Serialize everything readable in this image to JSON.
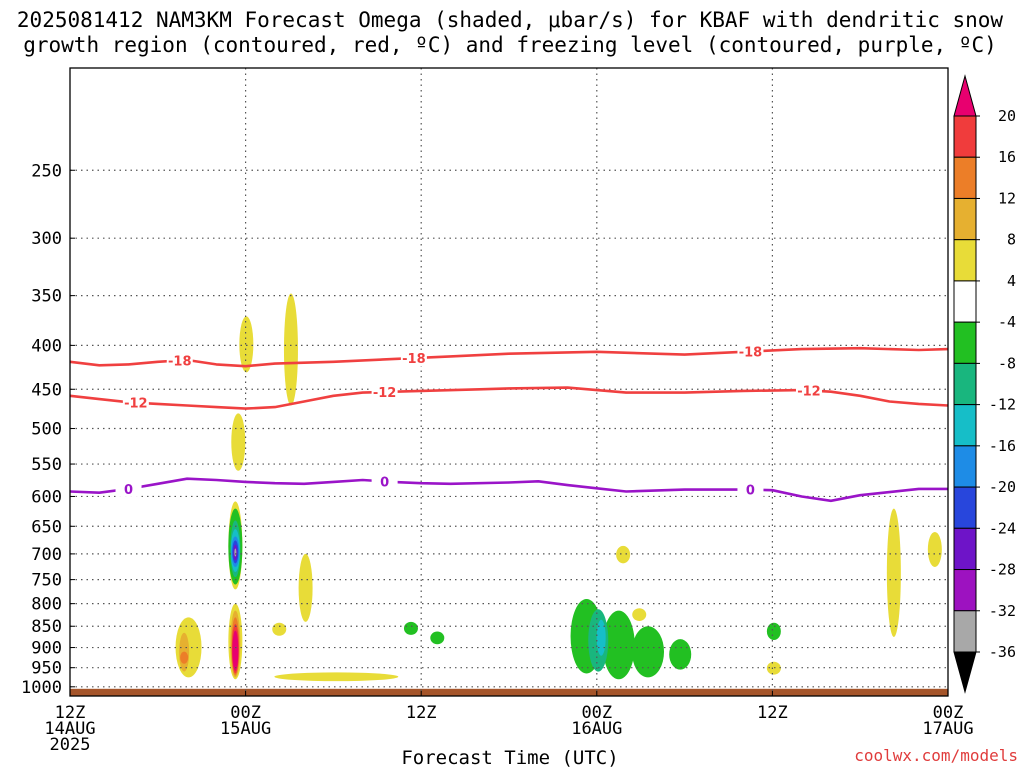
{
  "chart_data": {
    "type": "heatmap",
    "title_line1": "2025081412 NAM3KM Forecast Omega (shaded, μbar/s) for KBAF with dendritic snow",
    "title_line2": "growth region (contoured, red, ºC) and freezing level (contoured, purple, ºC)",
    "xlabel": "Forecast Time (UTC)",
    "credit": "coolwx.com/models",
    "x_hours_range": [
      0,
      60
    ],
    "x_ticks": [
      {
        "h": 0,
        "lines": [
          "12Z",
          "14AUG",
          "2025"
        ]
      },
      {
        "h": 12,
        "lines": [
          "00Z",
          "15AUG"
        ]
      },
      {
        "h": 24,
        "lines": [
          "12Z"
        ]
      },
      {
        "h": 36,
        "lines": [
          "00Z",
          "16AUG"
        ]
      },
      {
        "h": 48,
        "lines": [
          "12Z"
        ]
      },
      {
        "h": 60,
        "lines": [
          "00Z",
          "17AUG"
        ]
      }
    ],
    "y_axis": {
      "scale": "log",
      "range": [
        1025,
        190
      ],
      "reversed": true
    },
    "y_ticks": [
      250,
      300,
      350,
      400,
      450,
      500,
      550,
      600,
      650,
      700,
      750,
      800,
      850,
      900,
      950,
      1000
    ],
    "grid": true,
    "ground_level": 1000,
    "colorbar": {
      "labels": [
        "20",
        "16",
        "12",
        "8",
        "4",
        "-4",
        "-8",
        "-12",
        "-16",
        "-20",
        "-24",
        "-28",
        "-32",
        "-36"
      ],
      "colors": [
        "#e8006f",
        "#f03c3c",
        "#ec7e28",
        "#e6b030",
        "#e8dc38",
        "#ffffff",
        "#22c022",
        "#19b67e",
        "#16bec8",
        "#1e8ce6",
        "#2846dc",
        "#6e14c8",
        "#9d12c0",
        "#a8a8a8",
        "#000000"
      ]
    },
    "contours": [
      {
        "name": "-18",
        "color": "#f04040",
        "points": [
          [
            0,
            418
          ],
          [
            2,
            422
          ],
          [
            4,
            421
          ],
          [
            6,
            418
          ],
          [
            8,
            416
          ],
          [
            10,
            421
          ],
          [
            12,
            423
          ],
          [
            14,
            420
          ],
          [
            18,
            418
          ],
          [
            22,
            415
          ],
          [
            26,
            412
          ],
          [
            30,
            409
          ],
          [
            36,
            407
          ],
          [
            40,
            409
          ],
          [
            42,
            410
          ],
          [
            46,
            407
          ],
          [
            50,
            404
          ],
          [
            54,
            403
          ],
          [
            58,
            405
          ],
          [
            60,
            404
          ]
        ],
        "labels_at": [
          7.5,
          23.5,
          46.5
        ]
      },
      {
        "name": "-12",
        "color": "#f04040",
        "points": [
          [
            0,
            458
          ],
          [
            2,
            462
          ],
          [
            4,
            466
          ],
          [
            6,
            468
          ],
          [
            8,
            470
          ],
          [
            10,
            472
          ],
          [
            12,
            474
          ],
          [
            14,
            472
          ],
          [
            16,
            465
          ],
          [
            18,
            458
          ],
          [
            20,
            454
          ],
          [
            24,
            452
          ],
          [
            28,
            450
          ],
          [
            30,
            449
          ],
          [
            34,
            448
          ],
          [
            36,
            451
          ],
          [
            38,
            454
          ],
          [
            42,
            454
          ],
          [
            46,
            452
          ],
          [
            50,
            451
          ],
          [
            52,
            453
          ],
          [
            54,
            458
          ],
          [
            56,
            465
          ],
          [
            58,
            468
          ],
          [
            60,
            470
          ]
        ],
        "labels_at": [
          4.5,
          21.5,
          50.5
        ]
      },
      {
        "name": "0",
        "color": "#9a14c8",
        "points": [
          [
            0,
            592
          ],
          [
            2,
            594
          ],
          [
            4,
            588
          ],
          [
            6,
            580
          ],
          [
            8,
            572
          ],
          [
            10,
            574
          ],
          [
            12,
            577
          ],
          [
            14,
            579
          ],
          [
            16,
            580
          ],
          [
            18,
            577
          ],
          [
            20,
            574
          ],
          [
            22,
            577
          ],
          [
            24,
            579
          ],
          [
            26,
            580
          ],
          [
            30,
            578
          ],
          [
            32,
            576
          ],
          [
            34,
            582
          ],
          [
            36,
            587
          ],
          [
            38,
            592
          ],
          [
            42,
            589
          ],
          [
            46,
            589
          ],
          [
            48,
            590
          ],
          [
            50,
            600
          ],
          [
            52,
            607
          ],
          [
            54,
            598
          ],
          [
            56,
            593
          ],
          [
            58,
            588
          ],
          [
            60,
            588
          ]
        ],
        "labels_at": [
          4,
          21.5,
          46.5
        ]
      }
    ],
    "omega_regions": [
      {
        "c": "#e8dc38",
        "cx": 12.05,
        "p1": 370,
        "p2": 430
      },
      {
        "c": "#e8dc38",
        "cx": 15.1,
        "p1": 348,
        "p2": 470
      },
      {
        "c": "#e8dc38",
        "cx": 11.5,
        "p1": 480,
        "p2": 560
      },
      {
        "c": "#e8dc38",
        "cx": 11.3,
        "p1": 608,
        "p2": 770
      },
      {
        "c": "#22c022",
        "cx": 11.3,
        "p1": 620,
        "p2": 760
      },
      {
        "c": "#19b67e",
        "cx": 11.3,
        "p1": 640,
        "p2": 745
      },
      {
        "c": "#16bec8",
        "cx": 11.3,
        "p1": 655,
        "p2": 735
      },
      {
        "c": "#1e8ce6",
        "cx": 11.3,
        "p1": 668,
        "p2": 725
      },
      {
        "c": "#2846dc",
        "cx": 11.3,
        "p1": 675,
        "p2": 718
      },
      {
        "c": "#6e14c8",
        "cx": 11.3,
        "p1": 683,
        "p2": 712
      },
      {
        "c": "#a8a8a8",
        "cx": 11.3,
        "p1": 690,
        "p2": 705
      },
      {
        "c": "#e8dc38",
        "cx": 8.1,
        "p1": 830,
        "p2": 975
      },
      {
        "c": "#e6b030",
        "cx": 7.8,
        "p1": 865,
        "p2": 960
      },
      {
        "c": "#ec7e28",
        "cx": 7.8,
        "p1": 910,
        "p2": 940
      },
      {
        "c": "#e8dc38",
        "cx": 11.3,
        "p1": 800,
        "p2": 980
      },
      {
        "c": "#e6b030",
        "cx": 11.3,
        "p1": 815,
        "p2": 975
      },
      {
        "c": "#ec7e28",
        "cx": 11.3,
        "p1": 830,
        "p2": 970
      },
      {
        "c": "#f03c3c",
        "cx": 11.3,
        "p1": 845,
        "p2": 965
      },
      {
        "c": "#e8006f",
        "cx": 11.3,
        "p1": 860,
        "p2": 958
      },
      {
        "c": "#e8dc38",
        "cx": 16.1,
        "p1": 700,
        "p2": 840
      },
      {
        "c": "#e8dc38",
        "cx": 14.3,
        "p1": 842,
        "p2": 872
      },
      {
        "c": "#e8dc38",
        "cx": 18.2,
        "p1": 962,
        "p2": 985
      },
      {
        "c": "#e8dc38",
        "cx": 37.8,
        "p1": 685,
        "p2": 718
      },
      {
        "c": "#e8dc38",
        "cx": 38.9,
        "p1": 810,
        "p2": 838
      },
      {
        "c": "#e8dc38",
        "cx": 48.1,
        "p1": 935,
        "p2": 968
      },
      {
        "c": "#e8dc38",
        "cx": 56.3,
        "p1": 620,
        "p2": 875
      },
      {
        "c": "#e8dc38",
        "cx": 59.1,
        "p1": 660,
        "p2": 725
      },
      {
        "c": "#22c022",
        "cx": 23.3,
        "p1": 840,
        "p2": 870
      },
      {
        "c": "#22c022",
        "cx": 25.1,
        "p1": 862,
        "p2": 892
      },
      {
        "c": "#22c022",
        "cx": 48.1,
        "p1": 842,
        "p2": 882
      },
      {
        "c": "#22c022",
        "cx": 41.7,
        "p1": 880,
        "p2": 955
      },
      {
        "c": "#22c022",
        "cx": 35.3,
        "p1": 790,
        "p2": 965
      },
      {
        "c": "#22c022",
        "cx": 37.5,
        "p1": 815,
        "p2": 980
      },
      {
        "c": "#22c022",
        "cx": 39.5,
        "p1": 850,
        "p2": 975
      },
      {
        "c": "#19b67e",
        "cx": 36.1,
        "p1": 812,
        "p2": 960
      },
      {
        "c": "#16bec8",
        "cx": 36.3,
        "p1": 835,
        "p2": 920
      }
    ]
  }
}
